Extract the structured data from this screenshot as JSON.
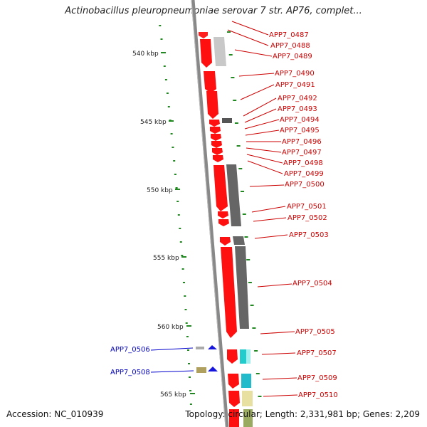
{
  "header": {
    "title": "Actinobacillus pleuropneumoniae serovar 7 str. AP76, complet..."
  },
  "footer": {
    "accession": "Accession: NC_010939",
    "topology": "Topology: circular; Length: 2,331,981 bp; Genes: 2,209"
  },
  "scale": {
    "ticks": [
      "540 kbp",
      "545 kbp",
      "550 kbp",
      "555 kbp",
      "560 kbp",
      "565 kbp"
    ]
  },
  "colors": {
    "forward_gene": "#ff0000",
    "reverse_gene": "#0000cc",
    "backbone": "#888888",
    "tick": "#228822"
  },
  "genes_right": [
    "APP7_0487",
    "APP7_0488",
    "APP7_0489",
    "APP7_0490",
    "APP7_0491",
    "APP7_0492",
    "APP7_0493",
    "APP7_0494",
    "APP7_0495",
    "APP7_0496",
    "APP7_0497",
    "APP7_0498",
    "APP7_0499",
    "APP7_0500",
    "APP7_0501",
    "APP7_0502",
    "APP7_0503",
    "APP7_0504",
    "APP7_0505",
    "APP7_0507",
    "APP7_0509",
    "APP7_0510"
  ],
  "genes_left": [
    "APP7_0506",
    "APP7_0508"
  ]
}
